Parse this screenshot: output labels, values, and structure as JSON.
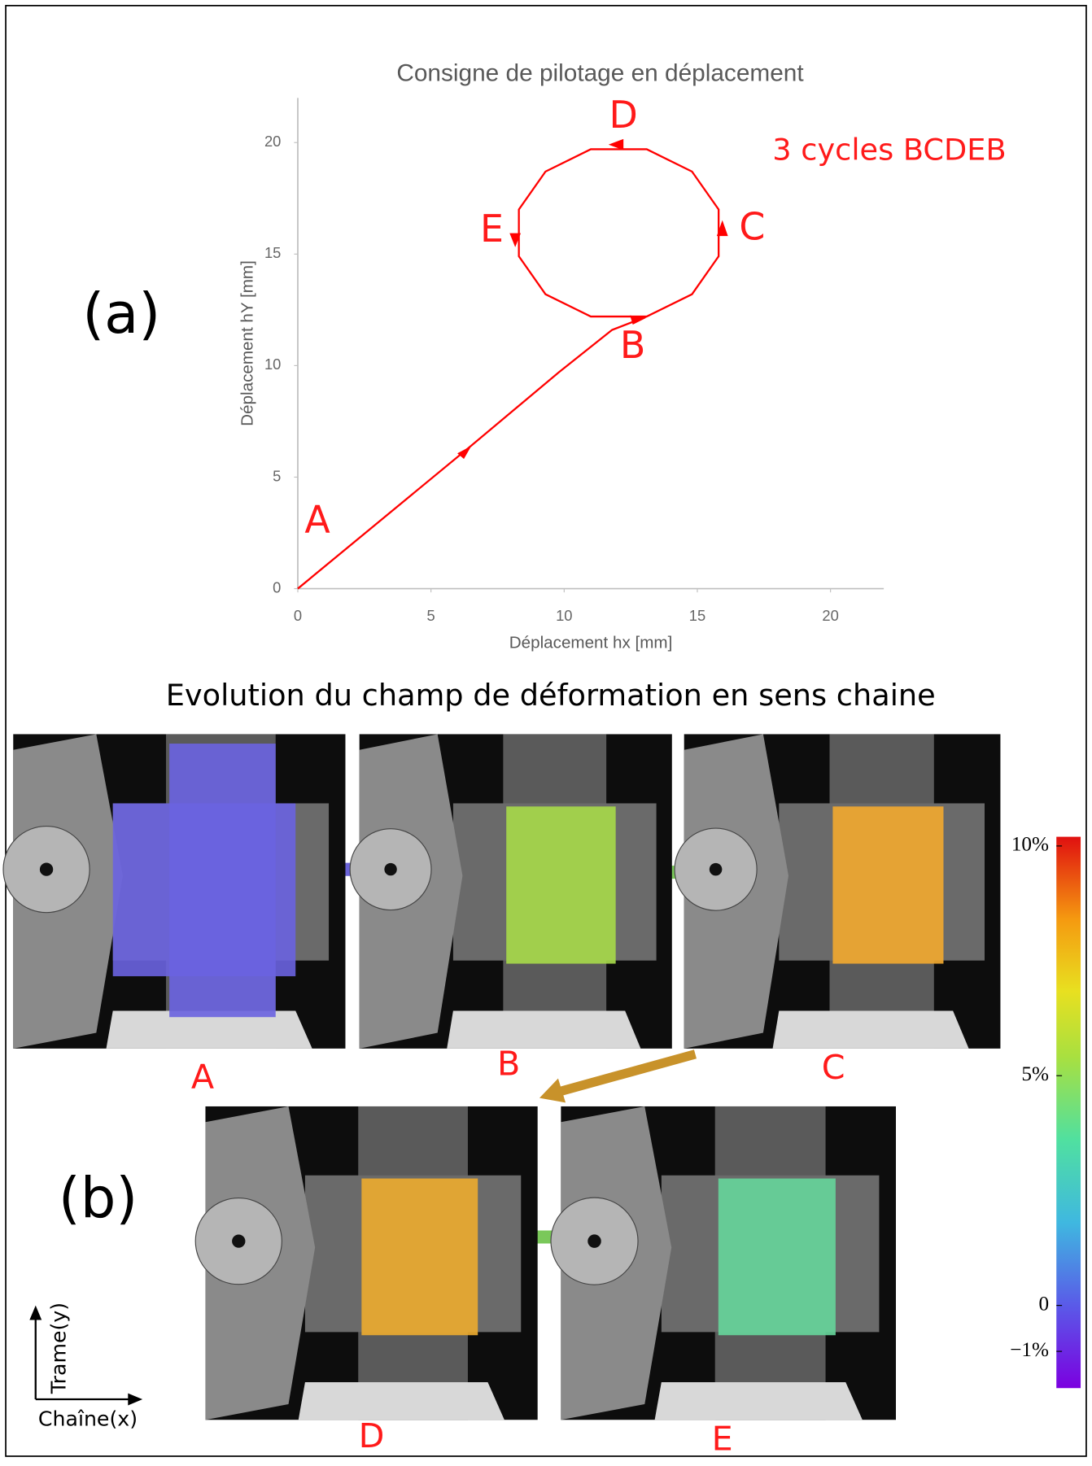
{
  "chart_data": {
    "type": "line",
    "title": "Consigne de pilotage en déplacement",
    "x_label": "Déplacement hx [mm]",
    "y_label": "Déplacement hY [mm]",
    "xlim": [
      0,
      22
    ],
    "ylim": [
      0,
      22
    ],
    "xticks": [
      0,
      5,
      10,
      15,
      20
    ],
    "yticks": [
      0,
      5,
      10,
      15,
      20
    ],
    "series": [
      {
        "color": "#ff0000",
        "x": [
          0,
          6.5,
          9.8,
          11.8,
          13.1,
          14.8,
          15.8,
          15.8,
          14.8,
          13.1,
          11.0,
          9.3,
          8.3,
          8.3,
          9.3,
          11.0,
          13.1
        ],
        "values": [
          0,
          6.4,
          9.7,
          11.6,
          12.2,
          13.2,
          14.9,
          17.0,
          18.7,
          19.7,
          19.7,
          18.7,
          17.0,
          14.9,
          13.2,
          12.2,
          12.2
        ]
      }
    ],
    "point_labels": [
      "A",
      "B",
      "C",
      "D",
      "E"
    ],
    "note": "3 cycles BCDEB"
  },
  "figure": {
    "panel_a": "(a)",
    "panel_b": "(b)",
    "title": "Evolution du champ de déformation en sens chaine",
    "images": [
      "A",
      "B",
      "C",
      "D",
      "E"
    ],
    "colorbar": {
      "clim": [
        -1.8,
        10.2
      ],
      "ticks": [
        {
          "value": 10,
          "label": "10%"
        },
        {
          "value": 5,
          "label": "5%"
        },
        0,
        {
          "value": -1,
          "label": "−1%"
        }
      ]
    },
    "axis_labels": {
      "y": "Trame(y)",
      "x": "Chaîne(x)"
    }
  }
}
